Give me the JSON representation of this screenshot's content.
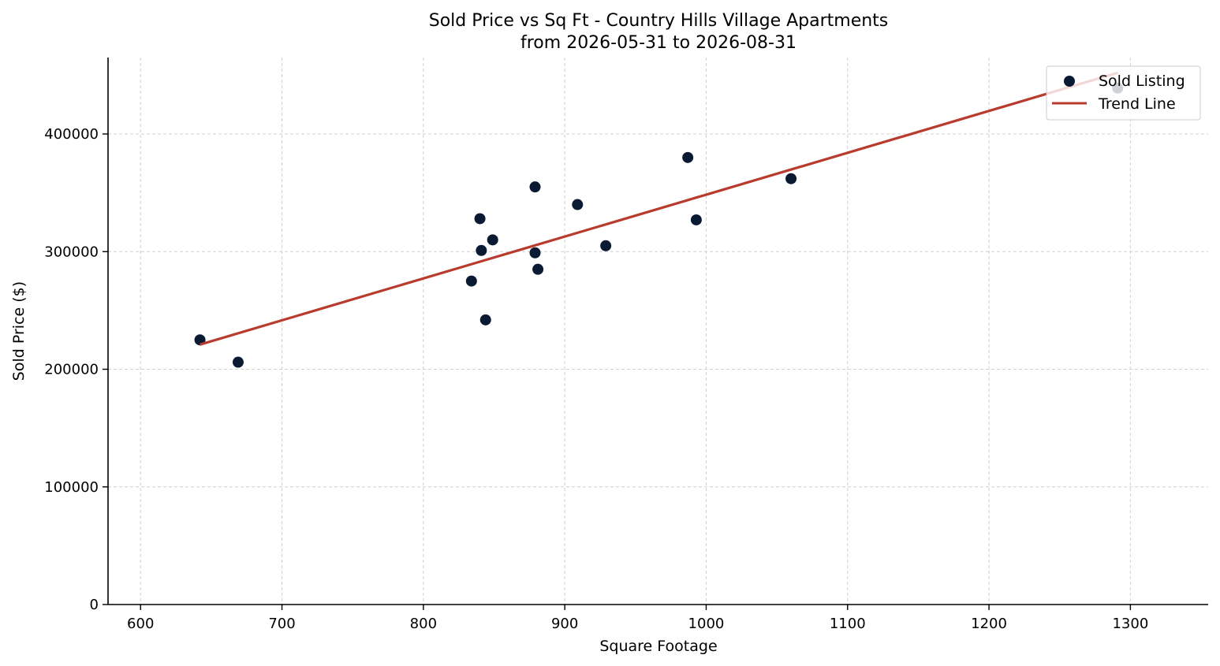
{
  "chart_data": {
    "type": "scatter",
    "title": "Sold Price vs Sq Ft - Country Hills Village Apartments",
    "subtitle": "from 2026-05-31 to 2026-08-31",
    "xlabel": "Square Footage",
    "ylabel": "Sold Price ($)",
    "xlim": [
      577,
      1355
    ],
    "ylim": [
      0,
      465000
    ],
    "x_ticks": [
      "600",
      "700",
      "800",
      "900",
      "1000",
      "1100",
      "1200",
      "1300"
    ],
    "y_ticks": [
      "0",
      "100000",
      "200000",
      "300000",
      "400000"
    ],
    "grid": true,
    "legend_position": "top-right",
    "series": [
      {
        "name": "Sold Listing",
        "kind": "scatter",
        "color": "#0b1a33",
        "points": [
          {
            "x": 642,
            "y": 225000
          },
          {
            "x": 669,
            "y": 206000
          },
          {
            "x": 834,
            "y": 275000
          },
          {
            "x": 840,
            "y": 328000
          },
          {
            "x": 841,
            "y": 301000
          },
          {
            "x": 844,
            "y": 242000
          },
          {
            "x": 849,
            "y": 310000
          },
          {
            "x": 879,
            "y": 355000
          },
          {
            "x": 879,
            "y": 299000
          },
          {
            "x": 881,
            "y": 285000
          },
          {
            "x": 909,
            "y": 340000
          },
          {
            "x": 929,
            "y": 305000
          },
          {
            "x": 987,
            "y": 380000
          },
          {
            "x": 993,
            "y": 327000
          },
          {
            "x": 1060,
            "y": 362000
          },
          {
            "x": 1291,
            "y": 439000
          }
        ]
      },
      {
        "name": "Trend Line",
        "kind": "line",
        "color": "#b83b2e",
        "points": [
          {
            "x": 642,
            "y": 221000
          },
          {
            "x": 1291,
            "y": 452000
          }
        ]
      }
    ]
  }
}
